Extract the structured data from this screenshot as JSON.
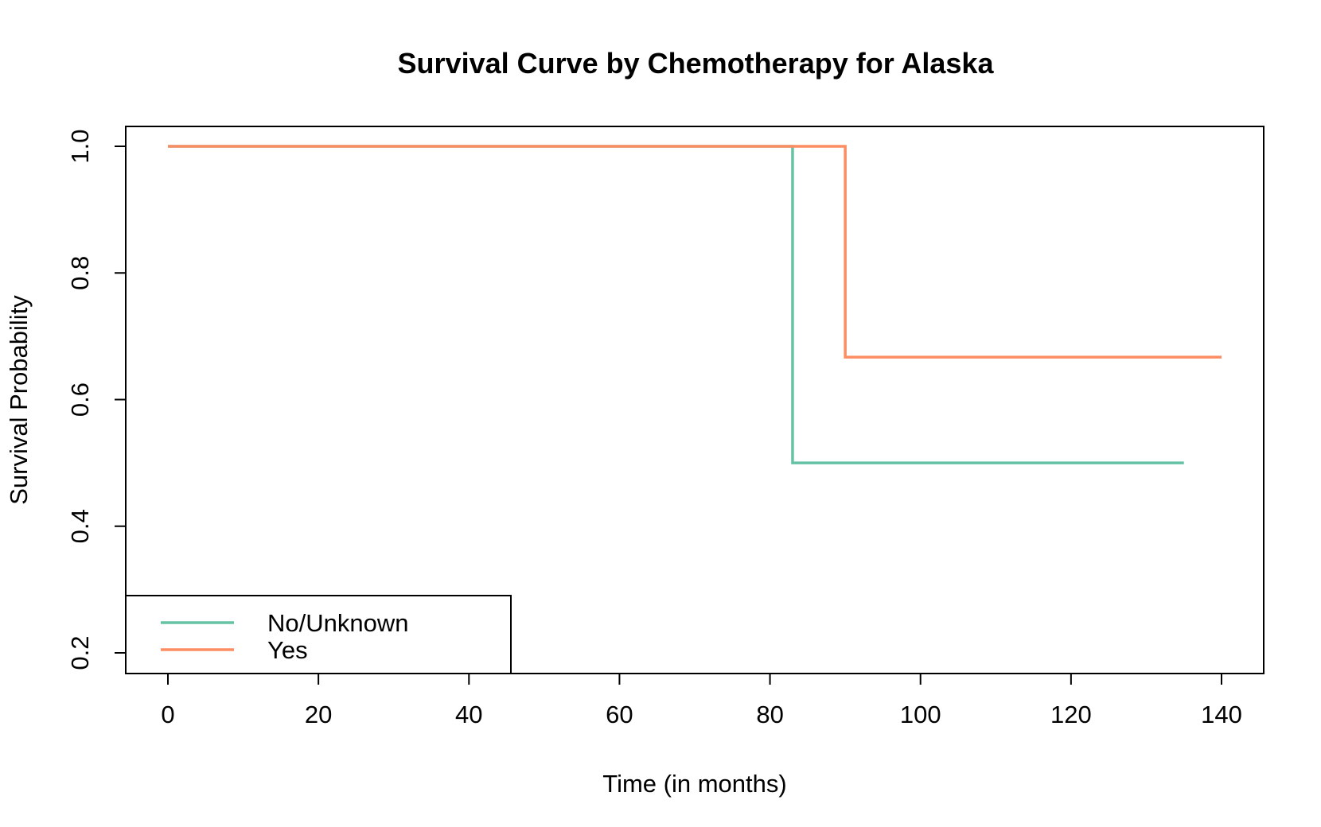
{
  "chart_data": {
    "type": "line",
    "step": true,
    "title": "Survival Curve by Chemotherapy for Alaska",
    "xlabel": "Time (in months)",
    "ylabel": "Survival Probability",
    "xlim": [
      0,
      140
    ],
    "ylim": [
      0.2,
      1.0
    ],
    "xticks": [
      0,
      20,
      40,
      60,
      80,
      100,
      120,
      140
    ],
    "xtick_labels": [
      "0",
      "20",
      "40",
      "60",
      "80",
      "100",
      "120",
      "140"
    ],
    "yticks": [
      0.2,
      0.4,
      0.6,
      0.8,
      1.0
    ],
    "ytick_labels": [
      "0.2",
      "0.4",
      "0.6",
      "0.8",
      "1.0"
    ],
    "grid": false,
    "legend_position": "bottom-left",
    "series": [
      {
        "name": "No/Unknown",
        "color": "#66c2a5",
        "x": [
          0,
          83,
          135
        ],
        "y": [
          1.0,
          0.5,
          0.5
        ]
      },
      {
        "name": "Yes",
        "color": "#fc8d62",
        "x": [
          0,
          90,
          140
        ],
        "y": [
          1.0,
          0.667,
          0.667
        ]
      }
    ]
  }
}
